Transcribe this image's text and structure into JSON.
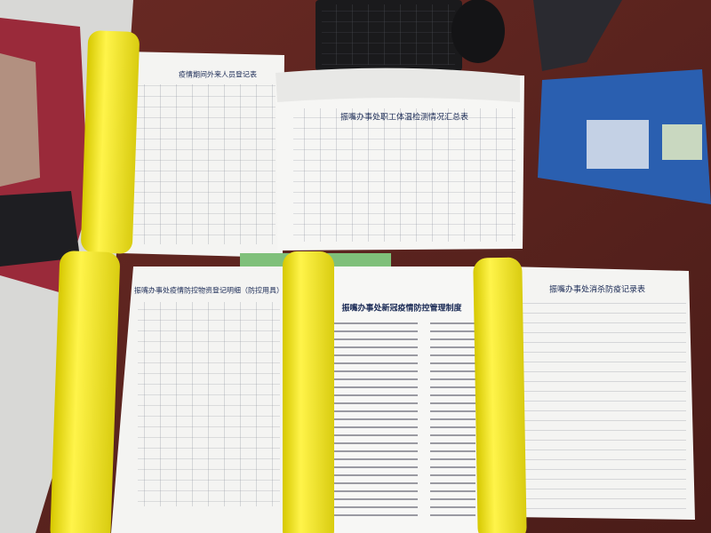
{
  "documents": [
    {
      "title": "疫情期间外来人员登记表"
    },
    {
      "title": "振嘴办事处职工体温检测情况汇总表"
    },
    {
      "title": "振嘴办事处疫情防控物资登记明细（防控用具）"
    },
    {
      "title": "振嘴办事处新冠疫情防控管理制度"
    },
    {
      "title": "振嘴办事处消杀防疫记录表"
    }
  ]
}
